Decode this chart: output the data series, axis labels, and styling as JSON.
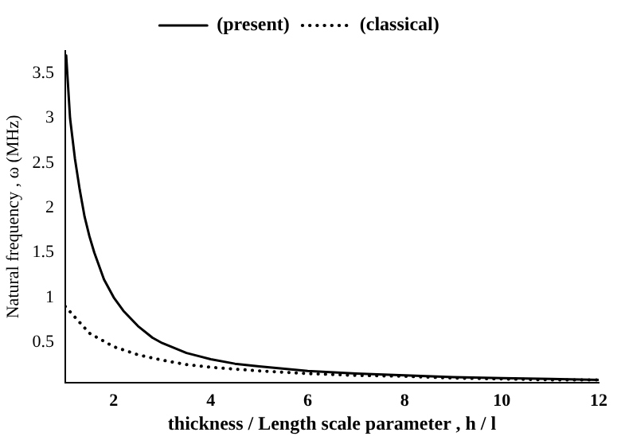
{
  "chart_data": {
    "type": "line",
    "xlabel": "thickness / Length scale parameter , h / l",
    "ylabel": "Natural frequency , ω (MHz)",
    "xlim": [
      1,
      12
    ],
    "ylim": [
      0.05,
      3.75
    ],
    "xticks": [
      2,
      4,
      6,
      8,
      10,
      12
    ],
    "yticks": [
      0.5,
      1,
      1.5,
      2,
      2.5,
      3,
      3.5
    ],
    "grid": false,
    "legend": "top",
    "marker": "none",
    "series": [
      {
        "name": "(present)",
        "color": "#000000",
        "line_style": "solid",
        "x": [
          1.02,
          1.1,
          1.2,
          1.3,
          1.4,
          1.5,
          1.6,
          1.8,
          2,
          2.2,
          2.5,
          2.8,
          3,
          3.5,
          4,
          4.5,
          5,
          6,
          7,
          8,
          9,
          10,
          11,
          12
        ],
        "values": [
          3.7,
          3.0,
          2.55,
          2.2,
          1.9,
          1.68,
          1.5,
          1.2,
          1.0,
          0.85,
          0.68,
          0.55,
          0.49,
          0.38,
          0.31,
          0.26,
          0.23,
          0.18,
          0.15,
          0.13,
          0.11,
          0.1,
          0.09,
          0.08
        ]
      },
      {
        "name": "(classical)",
        "color": "#000000",
        "line_style": "dotted",
        "x": [
          1,
          1.5,
          2,
          2.5,
          3,
          3.5,
          4,
          5,
          6,
          7,
          8,
          9,
          10,
          11,
          12
        ],
        "values": [
          0.9,
          0.6,
          0.45,
          0.36,
          0.3,
          0.25,
          0.22,
          0.18,
          0.15,
          0.13,
          0.12,
          0.1,
          0.09,
          0.08,
          0.08
        ]
      }
    ]
  }
}
